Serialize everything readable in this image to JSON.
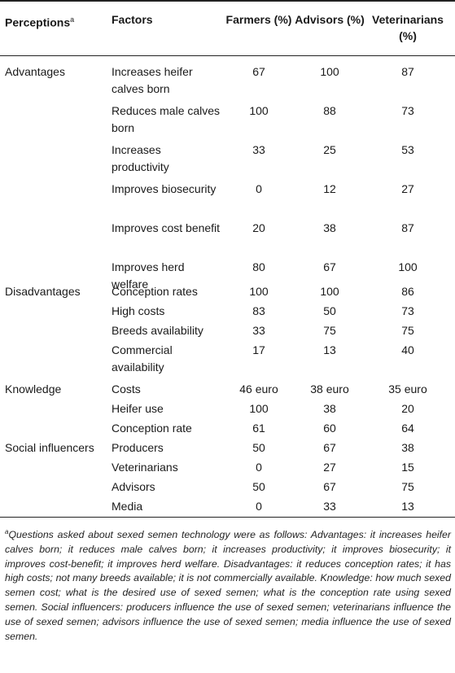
{
  "header": {
    "perceptions": "Perceptions",
    "perceptions_sup": "a",
    "factors": "Factors",
    "farmers": "Farmers (%)",
    "advisors": "Advisors (%)",
    "veterinarians": "Veterinarians (%)"
  },
  "rows": [
    {
      "group": "Advantages",
      "factor": "Increases heifer calves born",
      "farmers": "67",
      "advisors": "100",
      "veterinarians": "87"
    },
    {
      "group": "",
      "factor": "Reduces male calves born",
      "farmers": "100",
      "advisors": "88",
      "veterinarians": "73"
    },
    {
      "group": "",
      "factor": "Increases productivity",
      "farmers": "33",
      "advisors": "25",
      "veterinarians": "53"
    },
    {
      "group": "",
      "factor": "Improves biosecurity",
      "farmers": "0",
      "advisors": "12",
      "veterinarians": "27"
    },
    {
      "group": "",
      "factor": "Improves cost benefit",
      "farmers": "20",
      "advisors": "38",
      "veterinarians": "87"
    },
    {
      "group": "",
      "factor": "Improves herd welfare",
      "farmers": "80",
      "advisors": "67",
      "veterinarians": "100"
    },
    {
      "group": "Disadvantages",
      "factor": "Conception rates",
      "farmers": "100",
      "advisors": "100",
      "veterinarians": "86"
    },
    {
      "group": "",
      "factor": "High costs",
      "farmers": "83",
      "advisors": "50",
      "veterinarians": "73"
    },
    {
      "group": "",
      "factor": "Breeds availability",
      "farmers": "33",
      "advisors": "75",
      "veterinarians": "75"
    },
    {
      "group": "",
      "factor": "Commercial availability",
      "farmers": "17",
      "advisors": "13",
      "veterinarians": "40"
    },
    {
      "group": "Knowledge",
      "factor": "Costs",
      "farmers": "46 euro",
      "advisors": "38 euro",
      "veterinarians": "35 euro"
    },
    {
      "group": "",
      "factor": "Heifer use",
      "farmers": "100",
      "advisors": "38",
      "veterinarians": "20"
    },
    {
      "group": "",
      "factor": "Conception rate",
      "farmers": "61",
      "advisors": "60",
      "veterinarians": "64"
    },
    {
      "group": "Social influencers",
      "factor": "Producers",
      "farmers": "50",
      "advisors": "67",
      "veterinarians": "38"
    },
    {
      "group": "",
      "factor": "Veterinarians",
      "farmers": "0",
      "advisors": "27",
      "veterinarians": "15"
    },
    {
      "group": "",
      "factor": "Advisors",
      "farmers": "50",
      "advisors": "67",
      "veterinarians": "75"
    },
    {
      "group": "",
      "factor": "Media",
      "farmers": "0",
      "advisors": "33",
      "veterinarians": "13"
    }
  ],
  "footnote": {
    "marker": "a",
    "text": "Questions asked about sexed semen technology were as follows: Advantages: it increases heifer calves born; it reduces male calves born; it increases productivity; it improves biosecurity; it improves cost-benefit; it improves herd welfare. Disadvantages: it reduces conception rates; it has high costs; not many breeds available; it is not commercially available. Knowledge: how much sexed semen cost; what is the desired use of sexed semen; what is the conception rate using sexed semen. Social influencers: producers influence the use of sexed semen; veterinarians influence the use of sexed semen; advisors influence the use of sexed semen; media influence the use of sexed semen."
  }
}
